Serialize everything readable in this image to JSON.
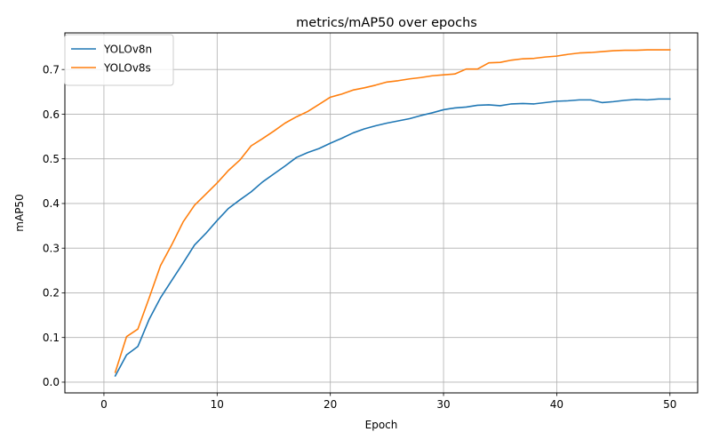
{
  "chart_data": {
    "type": "line",
    "title": "metrics/mAP50 over epochs",
    "xlabel": "Epoch",
    "ylabel": "mAP50",
    "xlim": [
      -3.45,
      52.45
    ],
    "ylim": [
      -0.024,
      0.782
    ],
    "xticks": [
      0,
      10,
      20,
      30,
      40,
      50
    ],
    "yticks": [
      0.0,
      0.1,
      0.2,
      0.3,
      0.4,
      0.5,
      0.6,
      0.7
    ],
    "ytick_labels": [
      "0.0",
      "0.1",
      "0.2",
      "0.3",
      "0.4",
      "0.5",
      "0.6",
      "0.7"
    ],
    "grid": true,
    "legend_position": "top-left",
    "x": [
      1,
      2,
      3,
      4,
      5,
      6,
      7,
      8,
      9,
      10,
      11,
      12,
      13,
      14,
      15,
      16,
      17,
      18,
      19,
      20,
      21,
      22,
      23,
      24,
      25,
      26,
      27,
      28,
      29,
      30,
      31,
      32,
      33,
      34,
      35,
      36,
      37,
      38,
      39,
      40,
      41,
      42,
      43,
      44,
      45,
      46,
      47,
      48,
      49,
      50
    ],
    "series": [
      {
        "name": "YOLOv8n",
        "color": "#1f77b4",
        "values": [
          0.014,
          0.061,
          0.08,
          0.141,
          0.189,
          0.228,
          0.267,
          0.307,
          0.333,
          0.362,
          0.389,
          0.408,
          0.426,
          0.448,
          0.466,
          0.484,
          0.503,
          0.514,
          0.523,
          0.535,
          0.546,
          0.558,
          0.567,
          0.574,
          0.58,
          0.585,
          0.59,
          0.597,
          0.603,
          0.61,
          0.614,
          0.616,
          0.62,
          0.621,
          0.619,
          0.623,
          0.624,
          0.623,
          0.626,
          0.629,
          0.63,
          0.632,
          0.632,
          0.626,
          0.628,
          0.631,
          0.633,
          0.632,
          0.634,
          0.634
        ]
      },
      {
        "name": "YOLOv8s",
        "color": "#ff7f0e",
        "values": [
          0.022,
          0.102,
          0.119,
          0.189,
          0.261,
          0.308,
          0.359,
          0.396,
          0.421,
          0.446,
          0.474,
          0.497,
          0.529,
          0.545,
          0.562,
          0.58,
          0.594,
          0.606,
          0.622,
          0.638,
          0.645,
          0.654,
          0.659,
          0.665,
          0.672,
          0.675,
          0.679,
          0.682,
          0.686,
          0.688,
          0.69,
          0.701,
          0.701,
          0.715,
          0.716,
          0.721,
          0.724,
          0.725,
          0.728,
          0.73,
          0.734,
          0.737,
          0.738,
          0.74,
          0.742,
          0.743,
          0.743,
          0.744,
          0.744,
          0.744
        ]
      }
    ]
  }
}
